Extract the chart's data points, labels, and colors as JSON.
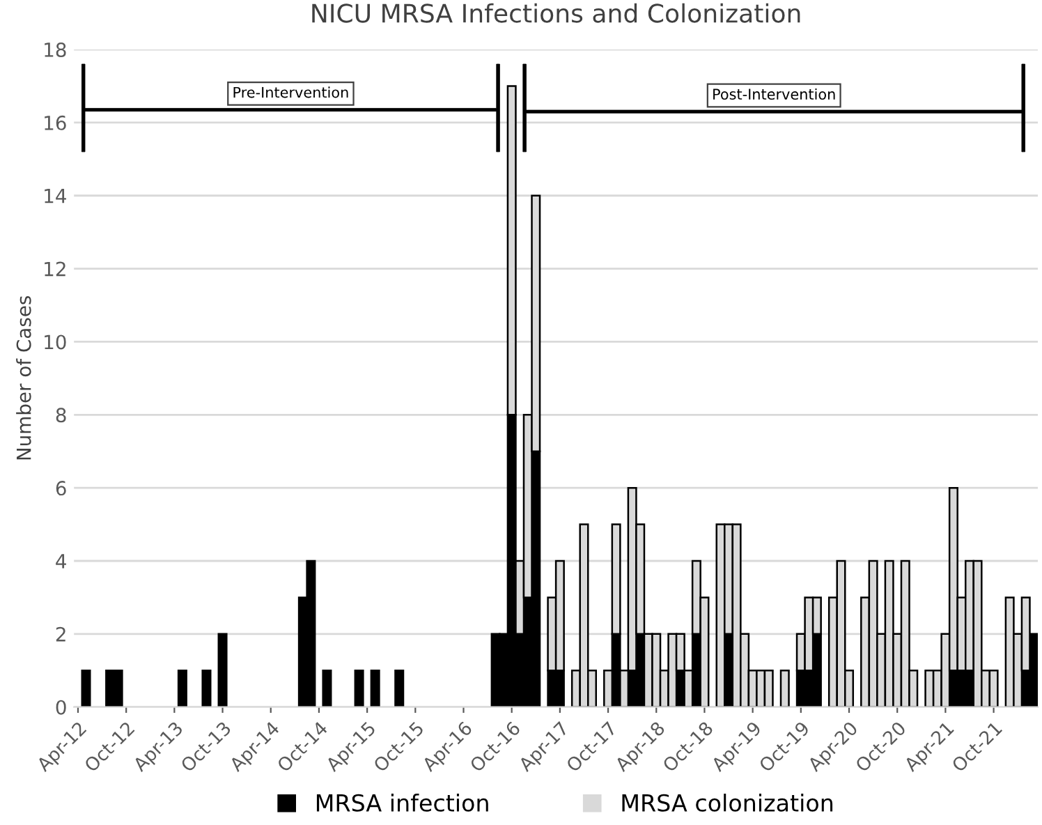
{
  "chart_data": {
    "type": "bar",
    "stacked": true,
    "title": "NICU MRSA Infections and Colonization",
    "ylabel": "Number of Cases",
    "categories": [
      "Apr-12",
      null,
      null,
      null,
      null,
      null,
      "Oct-12",
      null,
      null,
      null,
      null,
      null,
      "Apr-13",
      null,
      null,
      null,
      null,
      null,
      "Oct-13",
      null,
      null,
      null,
      null,
      null,
      "Apr-14",
      null,
      null,
      null,
      null,
      null,
      "Oct-14",
      null,
      null,
      null,
      null,
      null,
      "Apr-15",
      null,
      null,
      null,
      null,
      null,
      "Oct-15",
      null,
      null,
      null,
      null,
      null,
      "Apr-16",
      null,
      null,
      null,
      null,
      null,
      "Oct-16",
      null,
      null,
      null,
      null,
      null,
      "Apr-17",
      null,
      null,
      null,
      null,
      null,
      "Oct-17",
      null,
      null,
      null,
      null,
      null,
      "Apr-18",
      null,
      null,
      null,
      null,
      null,
      "Oct-18",
      null,
      null,
      null,
      null,
      null,
      "Apr-19",
      null,
      null,
      null,
      null,
      null,
      "Oct-19",
      null,
      null,
      null,
      null,
      null,
      "Apr-20",
      null,
      null,
      null,
      null,
      null,
      "Oct-20",
      null,
      null,
      null,
      null,
      null,
      "Apr-21",
      null,
      null,
      null,
      null,
      null,
      "Oct-21",
      null,
      null,
      null,
      null,
      null
    ],
    "series": [
      {
        "name": "MRSA infection",
        "color": "#000000",
        "values": [
          0,
          1,
          0,
          0,
          1,
          1,
          0,
          0,
          0,
          0,
          0,
          0,
          0,
          1,
          0,
          0,
          1,
          0,
          2,
          0,
          0,
          0,
          0,
          0,
          0,
          0,
          0,
          0,
          3,
          4,
          0,
          1,
          0,
          0,
          0,
          1,
          0,
          1,
          0,
          0,
          1,
          0,
          0,
          0,
          0,
          0,
          0,
          0,
          0,
          0,
          0,
          0,
          2,
          2,
          8,
          2,
          3,
          7,
          0,
          1,
          1,
          0,
          0,
          0,
          0,
          0,
          0,
          2,
          0,
          1,
          2,
          0,
          0,
          0,
          0,
          1,
          0,
          2,
          0,
          0,
          0,
          2,
          0,
          0,
          0,
          0,
          0,
          0,
          0,
          0,
          1,
          1,
          2,
          0,
          0,
          0,
          0,
          0,
          0,
          0,
          0,
          0,
          0,
          0,
          0,
          0,
          0,
          0,
          0,
          1,
          1,
          1,
          0,
          0,
          0,
          0,
          0,
          0,
          1,
          2
        ]
      },
      {
        "name": "MRSA colonization",
        "color": "#d9d9d9",
        "values": [
          0,
          0,
          0,
          0,
          0,
          0,
          0,
          0,
          0,
          0,
          0,
          0,
          0,
          0,
          0,
          0,
          0,
          0,
          0,
          0,
          0,
          0,
          0,
          0,
          0,
          0,
          0,
          0,
          0,
          0,
          0,
          0,
          0,
          0,
          0,
          0,
          0,
          0,
          0,
          0,
          0,
          0,
          0,
          0,
          0,
          0,
          0,
          0,
          0,
          0,
          0,
          0,
          0,
          0,
          9,
          2,
          5,
          7,
          0,
          2,
          3,
          0,
          1,
          5,
          1,
          0,
          1,
          3,
          1,
          5,
          3,
          2,
          2,
          1,
          2,
          1,
          1,
          2,
          3,
          0,
          5,
          3,
          5,
          2,
          1,
          1,
          1,
          0,
          1,
          0,
          1,
          2,
          1,
          0,
          3,
          4,
          1,
          0,
          3,
          4,
          2,
          4,
          2,
          4,
          1,
          0,
          1,
          1,
          2,
          5,
          2,
          3,
          4,
          1,
          1,
          0,
          3,
          2,
          2,
          0
        ]
      }
    ],
    "ylim": [
      0,
      18
    ],
    "yticks": [
      0,
      2,
      4,
      6,
      8,
      10,
      12,
      14,
      16,
      18
    ],
    "grid": "y",
    "legend": "bottom",
    "annotations": [
      "Pre-Intervention",
      "Post-Intervention"
    ]
  }
}
